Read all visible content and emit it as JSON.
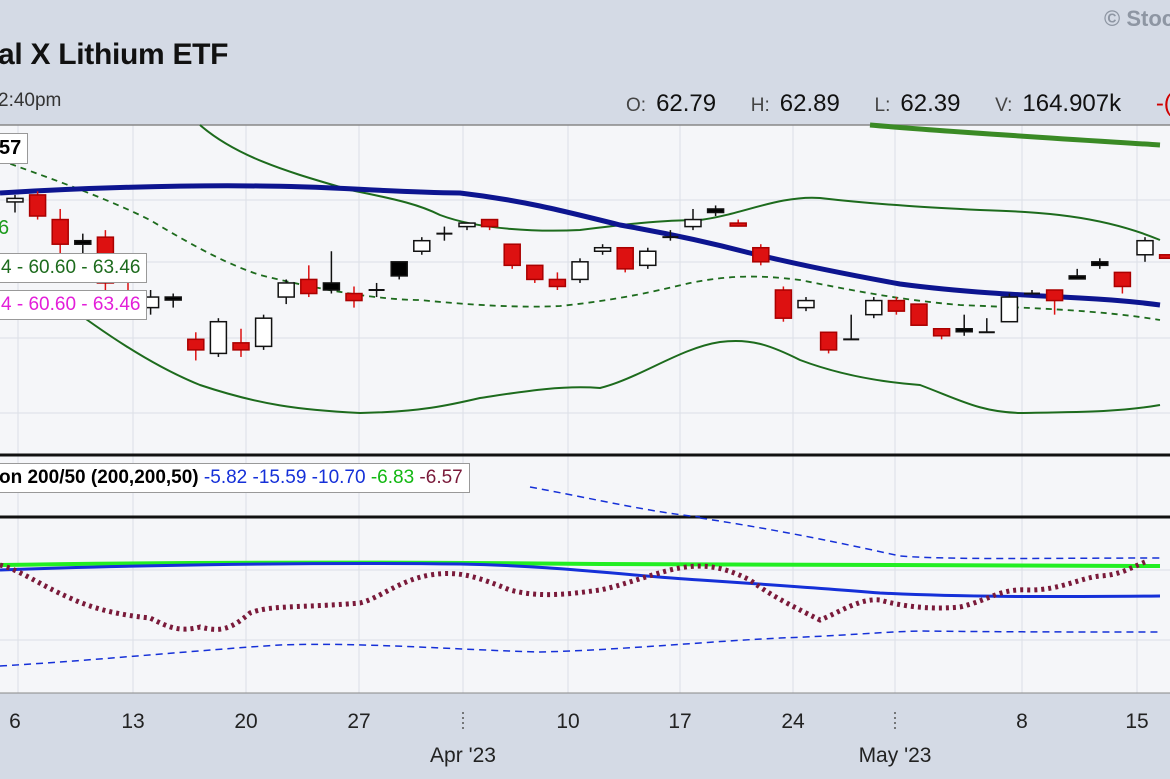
{
  "header": {
    "title": "al X Lithium ETF",
    "time": "2:40pm",
    "copyright": "© Stoc",
    "ohlc": {
      "open_label": "O:",
      "open": "62.79",
      "high_label": "H:",
      "high": "62.89",
      "low_label": "L:",
      "low": "62.39",
      "vol_label": "V:",
      "vol": "164.907k",
      "chg": "-("
    }
  },
  "legends": {
    "price_last": "57",
    "ma_short_last": "6",
    "bb_green_a": "4",
    "bb_green_b": "60.60",
    "bb_green_c": "63.46",
    "bb_green_sep": " - ",
    "bb_pink_a": "4",
    "bb_pink_b": "60.60",
    "bb_pink_c": "63.46",
    "ind_name": "on 200/50 (200,200,50)",
    "ind_v1": "-5.82",
    "ind_v2": "-15.59",
    "ind_v3": "-10.70",
    "ind_v4": "-6.83",
    "ind_v5": "-6.57"
  },
  "colors": {
    "background": "#d4dae5",
    "plot_bg": "#f5f6f9",
    "up_candle": "#ffffff",
    "down_candle": "#dd1111",
    "black_candle": "#000000",
    "ma_thick": "#0d1590",
    "bollinger": "#1d6b1d",
    "ma_long": "#3a8a25",
    "ind_green": "#22ee22",
    "ind_blue": "#1530d8",
    "ind_dots": "#7a1a3a",
    "ind_dash": "#1530d8"
  },
  "chart_data": {
    "type": "candlestick",
    "price_ylim": [
      58.2,
      67.0
    ],
    "x_ticks": [
      "6",
      "13",
      "20",
      "27",
      "10",
      "17",
      "24",
      "8",
      "15"
    ],
    "month_labels": [
      "Apr '23",
      "May '23"
    ],
    "candles": [
      {
        "o": 65.1,
        "h": 65.3,
        "l": 64.8,
        "c": 65.2,
        "t": "up"
      },
      {
        "o": 65.3,
        "h": 65.4,
        "l": 64.6,
        "c": 64.7,
        "t": "down"
      },
      {
        "o": 64.6,
        "h": 64.9,
        "l": 63.5,
        "c": 63.9,
        "t": "down"
      },
      {
        "o": 64.0,
        "h": 64.2,
        "l": 63.5,
        "c": 63.9,
        "t": "black"
      },
      {
        "o": 64.1,
        "h": 64.3,
        "l": 62.6,
        "c": 62.8,
        "t": "down"
      },
      {
        "o": 62.5,
        "h": 62.8,
        "l": 61.9,
        "c": 62.1,
        "t": "down"
      },
      {
        "o": 62.1,
        "h": 62.6,
        "l": 61.9,
        "c": 62.4,
        "t": "up"
      },
      {
        "o": 62.4,
        "h": 62.5,
        "l": 62.1,
        "c": 62.4,
        "t": "black"
      },
      {
        "o": 61.2,
        "h": 61.4,
        "l": 60.6,
        "c": 60.9,
        "t": "down"
      },
      {
        "o": 60.8,
        "h": 61.8,
        "l": 60.7,
        "c": 61.7,
        "t": "up"
      },
      {
        "o": 61.1,
        "h": 61.5,
        "l": 60.7,
        "c": 60.9,
        "t": "down"
      },
      {
        "o": 61.0,
        "h": 61.9,
        "l": 60.9,
        "c": 61.8,
        "t": "up"
      },
      {
        "o": 62.4,
        "h": 62.9,
        "l": 62.2,
        "c": 62.8,
        "t": "up"
      },
      {
        "o": 62.9,
        "h": 63.3,
        "l": 62.4,
        "c": 62.5,
        "t": "down"
      },
      {
        "o": 62.6,
        "h": 63.7,
        "l": 62.5,
        "c": 62.8,
        "t": "black"
      },
      {
        "o": 62.5,
        "h": 62.7,
        "l": 62.1,
        "c": 62.3,
        "t": "down"
      },
      {
        "o": 62.5,
        "h": 62.8,
        "l": 62.4,
        "c": 62.6,
        "t": "cross"
      },
      {
        "o": 63.0,
        "h": 63.4,
        "l": 62.9,
        "c": 63.4,
        "t": "black"
      },
      {
        "o": 63.7,
        "h": 64.1,
        "l": 63.6,
        "c": 64.0,
        "t": "up"
      },
      {
        "o": 64.2,
        "h": 64.4,
        "l": 64.0,
        "c": 64.2,
        "t": "cross"
      },
      {
        "o": 64.4,
        "h": 64.5,
        "l": 64.3,
        "c": 64.5,
        "t": "up"
      },
      {
        "o": 64.6,
        "h": 64.6,
        "l": 64.3,
        "c": 64.4,
        "t": "down"
      },
      {
        "o": 63.9,
        "h": 63.9,
        "l": 63.2,
        "c": 63.3,
        "t": "down"
      },
      {
        "o": 63.3,
        "h": 63.3,
        "l": 62.8,
        "c": 62.9,
        "t": "down"
      },
      {
        "o": 62.9,
        "h": 63.1,
        "l": 62.6,
        "c": 62.7,
        "t": "down"
      },
      {
        "o": 62.9,
        "h": 63.5,
        "l": 62.8,
        "c": 63.4,
        "t": "up"
      },
      {
        "o": 63.7,
        "h": 63.9,
        "l": 63.6,
        "c": 63.8,
        "t": "up"
      },
      {
        "o": 63.8,
        "h": 63.8,
        "l": 63.1,
        "c": 63.2,
        "t": "down"
      },
      {
        "o": 63.3,
        "h": 63.8,
        "l": 63.2,
        "c": 63.7,
        "t": "up"
      },
      {
        "o": 64.1,
        "h": 64.3,
        "l": 64.0,
        "c": 64.1,
        "t": "cross"
      },
      {
        "o": 64.4,
        "h": 64.9,
        "l": 64.3,
        "c": 64.6,
        "t": "up"
      },
      {
        "o": 64.8,
        "h": 65.0,
        "l": 64.7,
        "c": 64.9,
        "t": "black"
      },
      {
        "o": 64.5,
        "h": 64.6,
        "l": 64.4,
        "c": 64.5,
        "t": "down"
      },
      {
        "o": 63.8,
        "h": 63.9,
        "l": 63.3,
        "c": 63.4,
        "t": "down"
      },
      {
        "o": 62.6,
        "h": 62.7,
        "l": 61.7,
        "c": 61.8,
        "t": "down"
      },
      {
        "o": 62.1,
        "h": 62.4,
        "l": 62.0,
        "c": 62.3,
        "t": "up"
      },
      {
        "o": 61.4,
        "h": 61.4,
        "l": 60.8,
        "c": 60.9,
        "t": "down"
      },
      {
        "o": 61.2,
        "h": 61.9,
        "l": 61.2,
        "c": 61.2,
        "t": "cross"
      },
      {
        "o": 61.9,
        "h": 62.4,
        "l": 61.8,
        "c": 62.3,
        "t": "up"
      },
      {
        "o": 62.3,
        "h": 62.4,
        "l": 61.9,
        "c": 62.0,
        "t": "down"
      },
      {
        "o": 62.2,
        "h": 62.2,
        "l": 61.6,
        "c": 61.6,
        "t": "down"
      },
      {
        "o": 61.5,
        "h": 61.5,
        "l": 61.2,
        "c": 61.3,
        "t": "down"
      },
      {
        "o": 61.5,
        "h": 61.9,
        "l": 61.3,
        "c": 61.5,
        "t": "black"
      },
      {
        "o": 61.5,
        "h": 61.8,
        "l": 61.4,
        "c": 61.4,
        "t": "cross"
      },
      {
        "o": 61.7,
        "h": 62.5,
        "l": 61.7,
        "c": 62.4,
        "t": "up"
      },
      {
        "o": 62.6,
        "h": 62.6,
        "l": 62.5,
        "c": 62.5,
        "t": "cross"
      },
      {
        "o": 62.6,
        "h": 62.6,
        "l": 61.9,
        "c": 62.3,
        "t": "down"
      },
      {
        "o": 63.0,
        "h": 63.2,
        "l": 62.9,
        "c": 63.0,
        "t": "black"
      },
      {
        "o": 63.3,
        "h": 63.5,
        "l": 63.2,
        "c": 63.4,
        "t": "black"
      },
      {
        "o": 63.1,
        "h": 63.1,
        "l": 62.5,
        "c": 62.7,
        "t": "down"
      },
      {
        "o": 63.6,
        "h": 64.1,
        "l": 63.4,
        "c": 64.0,
        "t": "up"
      },
      {
        "o": 63.6,
        "h": 63.6,
        "l": 63.5,
        "c": 63.5,
        "t": "down"
      }
    ]
  }
}
